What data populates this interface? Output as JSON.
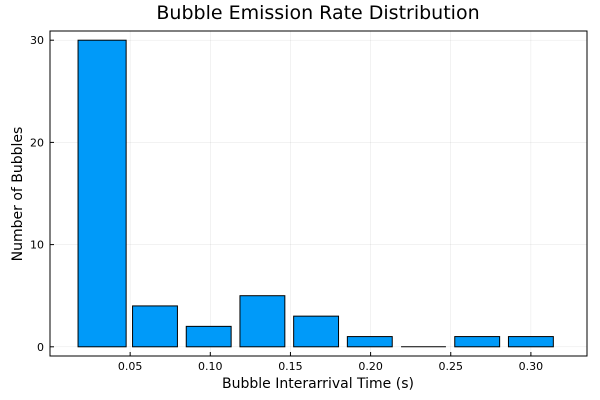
{
  "chart_data": {
    "type": "bar",
    "title": "Bubble Emission Rate Distribution",
    "xlabel": "Bubble Interarrival Time (s)",
    "ylabel": "Number of Bubbles",
    "bins": [
      {
        "start": 0.0175,
        "end": 0.0475,
        "count": 30
      },
      {
        "start": 0.0515,
        "end": 0.0795,
        "count": 4
      },
      {
        "start": 0.085,
        "end": 0.113,
        "count": 2
      },
      {
        "start": 0.1185,
        "end": 0.1465,
        "count": 5
      },
      {
        "start": 0.152,
        "end": 0.18,
        "count": 3
      },
      {
        "start": 0.1855,
        "end": 0.2135,
        "count": 1
      },
      {
        "start": 0.219,
        "end": 0.247,
        "count": 0
      },
      {
        "start": 0.2525,
        "end": 0.2805,
        "count": 1
      },
      {
        "start": 0.286,
        "end": 0.314,
        "count": 1
      }
    ],
    "xticks": [
      0.05,
      0.1,
      0.15,
      0.2,
      0.25,
      0.3
    ],
    "xtick_labels": [
      "0.05",
      "0.10",
      "0.15",
      "0.20",
      "0.25",
      "0.30"
    ],
    "yticks": [
      0,
      10,
      20,
      30
    ],
    "ytick_labels": [
      "0",
      "10",
      "20",
      "30"
    ],
    "xlim": [
      0.0,
      0.335
    ],
    "ylim": [
      -0.9,
      30.9
    ],
    "grid": true,
    "legend": "none",
    "bar_color": "#009af9"
  }
}
